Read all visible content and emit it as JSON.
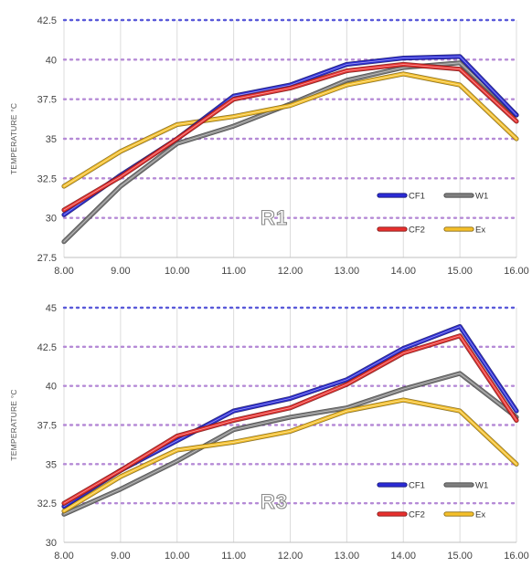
{
  "colors": {
    "CF1": "#2b2bd6",
    "W1": "#7f7f7f",
    "CF2": "#e8302e",
    "Ex": "#f5c02a",
    "grid_top": "#5a5ad9",
    "grid_mid": "#b58ad6"
  },
  "chart_data": [
    {
      "type": "line",
      "title": "",
      "panel_label": "R1",
      "xlabel": "",
      "ylabel": "TEMPERATURE °C",
      "x": [
        8,
        9,
        10,
        11,
        12,
        13,
        14,
        15,
        16
      ],
      "x_tick_labels": [
        "8.00",
        "9.00",
        "10.00",
        "11.00",
        "12.00",
        "13.00",
        "14.00",
        "15.00",
        "16.00"
      ],
      "ylim": [
        27.5,
        42.5
      ],
      "y_tick_labels": [
        "27.5",
        "30",
        "32.5",
        "35",
        "37.5",
        "40",
        "42.5"
      ],
      "y_ticks": [
        27.5,
        30,
        32.5,
        35,
        37.5,
        40,
        42.5
      ],
      "grid": true,
      "legend_placement": "bottom-right",
      "series": [
        {
          "name": "CF1",
          "values": [
            30.2,
            32.7,
            35.0,
            37.7,
            38.4,
            39.7,
            40.1,
            40.2,
            36.5
          ]
        },
        {
          "name": "W1",
          "values": [
            28.5,
            32.0,
            34.7,
            35.8,
            37.2,
            38.7,
            39.5,
            39.8,
            36.5
          ]
        },
        {
          "name": "CF2",
          "values": [
            30.5,
            32.6,
            35.0,
            37.5,
            38.2,
            39.3,
            39.7,
            39.4,
            36.1
          ]
        },
        {
          "name": "Ex",
          "values": [
            32.0,
            34.2,
            35.9,
            36.4,
            37.1,
            38.4,
            39.1,
            38.4,
            35.0
          ]
        }
      ]
    },
    {
      "type": "line",
      "title": "",
      "panel_label": "R3",
      "xlabel": "",
      "ylabel": "TEMPERATURE °C",
      "x": [
        8,
        9,
        10,
        11,
        12,
        13,
        14,
        15,
        16
      ],
      "x_tick_labels": [
        "8.00",
        "9.00",
        "10.00",
        "11.00",
        "12.00",
        "13.00",
        "14.00",
        "15.00",
        "16.00"
      ],
      "ylim": [
        30,
        45
      ],
      "y_tick_labels": [
        "30",
        "32.5",
        "35",
        "37.5",
        "40",
        "42.5",
        "45"
      ],
      "y_ticks": [
        30,
        32.5,
        35,
        37.5,
        40,
        42.5,
        45
      ],
      "grid": true,
      "legend_placement": "bottom-right",
      "series": [
        {
          "name": "CF1",
          "values": [
            32.3,
            34.6,
            36.5,
            38.4,
            39.2,
            40.4,
            42.4,
            43.8,
            38.4
          ]
        },
        {
          "name": "W1",
          "values": [
            31.8,
            33.4,
            35.2,
            37.2,
            38.0,
            38.6,
            39.8,
            40.8,
            38.0
          ]
        },
        {
          "name": "CF2",
          "values": [
            32.5,
            34.6,
            36.8,
            37.8,
            38.6,
            40.1,
            42.1,
            43.2,
            37.8
          ]
        },
        {
          "name": "Ex",
          "values": [
            32.0,
            34.2,
            35.9,
            36.4,
            37.1,
            38.4,
            39.1,
            38.4,
            35.0
          ]
        }
      ]
    }
  ]
}
